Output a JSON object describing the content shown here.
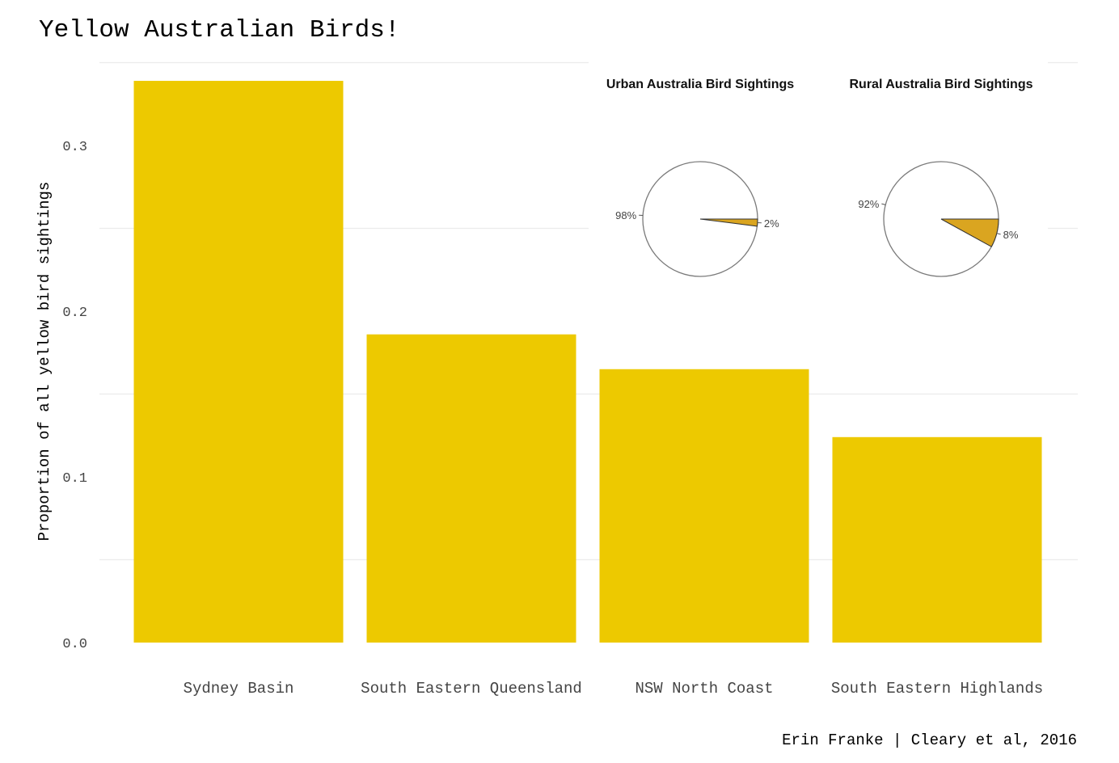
{
  "chart_data": [
    {
      "type": "bar",
      "title": "Yellow Australian Birds!",
      "xlabel": "",
      "ylabel": "Proportion of all yellow bird sightings",
      "categories": [
        "Sydney Basin",
        "South Eastern Queensland",
        "NSW North Coast",
        "South Eastern Highlands"
      ],
      "values": [
        0.339,
        0.186,
        0.165,
        0.124
      ],
      "ylim": [
        0,
        0.35
      ],
      "yticks": [
        0.0,
        0.1,
        0.2,
        0.3
      ],
      "ytick_labels": [
        "0.0",
        "0.1",
        "0.2",
        "0.3"
      ],
      "grid": true,
      "colors": {
        "bar": "#EDC900",
        "grid": "#EBEBEB",
        "text": "#000000",
        "tick": "#444444"
      },
      "caption": "Erin Franke | Cleary et al, 2016"
    },
    {
      "type": "pie",
      "title": "Urban Australia Bird Sightings",
      "slices": [
        {
          "label": "98%",
          "value": 98,
          "color": "#FFFFFF"
        },
        {
          "label": "2%",
          "value": 2,
          "color": "#DAA520"
        }
      ]
    },
    {
      "type": "pie",
      "title": "Rural Australia Bird Sightings",
      "slices": [
        {
          "label": "92%",
          "value": 92,
          "color": "#FFFFFF"
        },
        {
          "label": "8%",
          "value": 8,
          "color": "#DAA520"
        }
      ]
    }
  ]
}
